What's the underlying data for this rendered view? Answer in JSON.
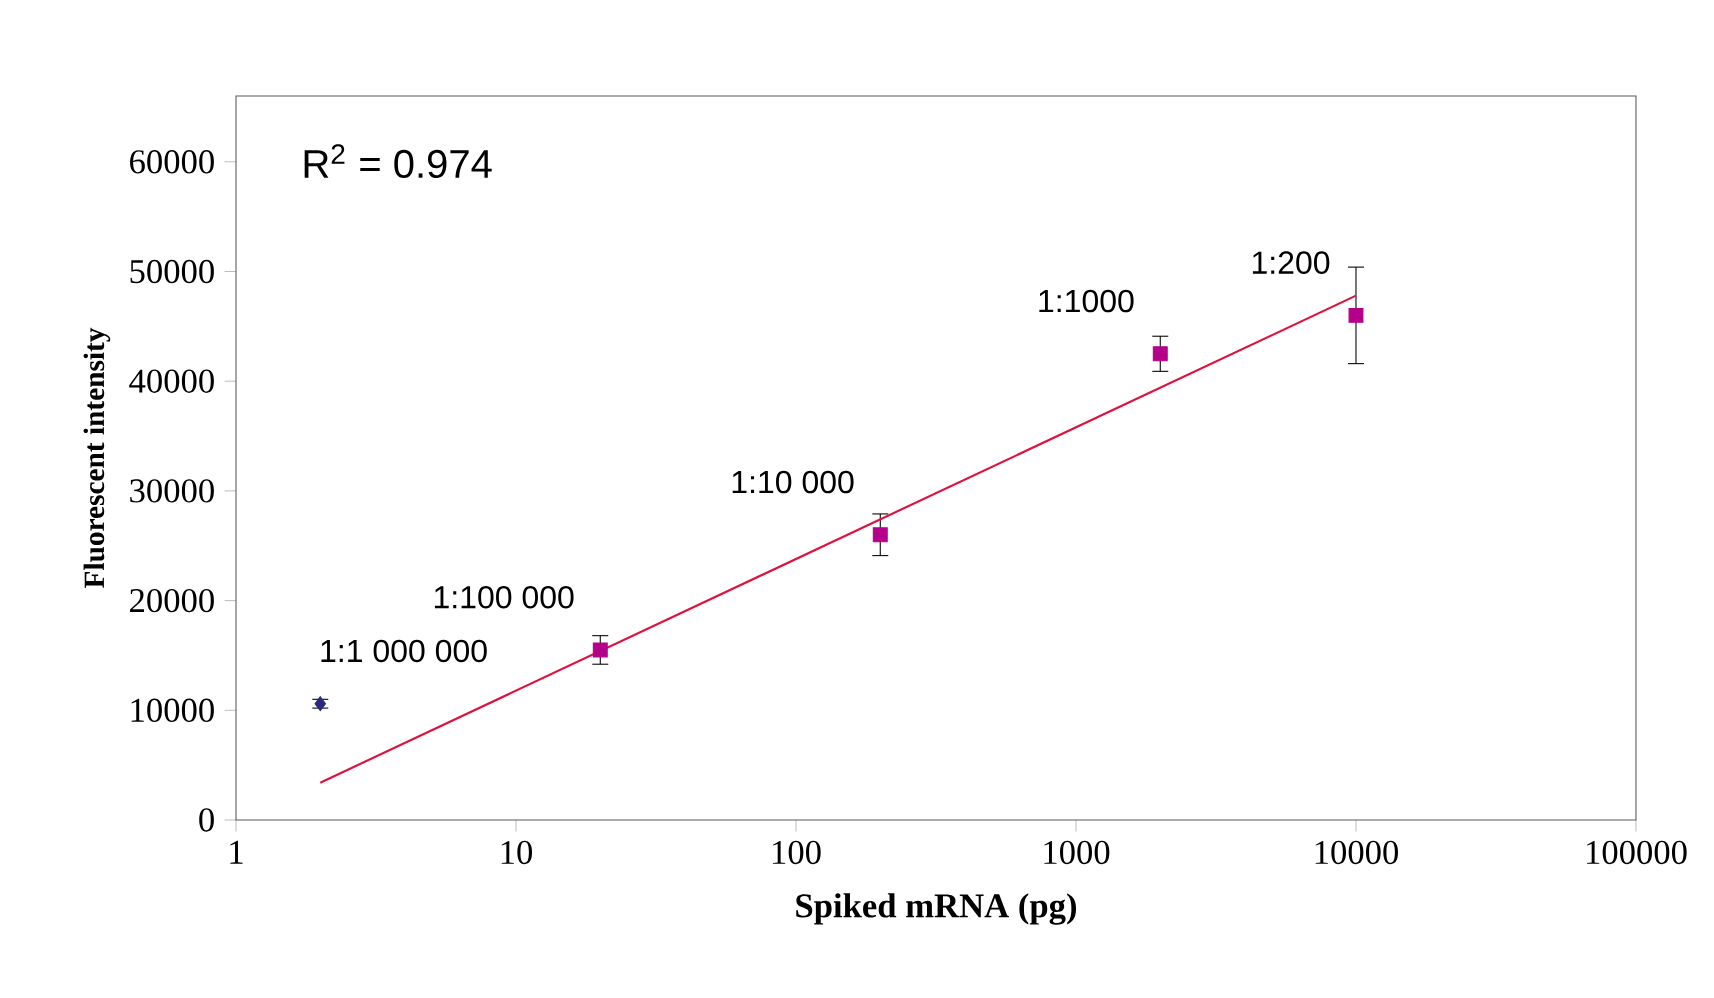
{
  "chart_data": {
    "type": "scatter",
    "xlabel": "Spiked mRNA (pg)",
    "ylabel": "Fluorescent intensity",
    "log": "x",
    "xlim": [
      1,
      100000
    ],
    "xticks": [
      1,
      10,
      100,
      1000,
      10000,
      100000
    ],
    "ylim": [
      0,
      66000
    ],
    "yticks": [
      0,
      10000,
      20000,
      30000,
      40000,
      50000,
      60000
    ],
    "series": [
      {
        "color": "#2b2a7a",
        "marker": "diamond",
        "x": [
          2
        ],
        "values": [
          10600
        ],
        "errors": [
          400
        ]
      },
      {
        "color": "#b5008a",
        "marker": "square",
        "x": [
          20,
          200,
          2000,
          10000
        ],
        "values": [
          15500,
          26000,
          42500,
          46000
        ],
        "errors": [
          1300,
          1900,
          1600,
          4400
        ]
      },
      {
        "type": "line",
        "color": "#e0103c",
        "marker": "none",
        "x": [
          2,
          10000
        ],
        "values": [
          3400,
          47800
        ]
      }
    ],
    "annotations": [
      "R$^{2}$ = 0.974",
      {
        "text": "1:1 000 000",
        "x": 2,
        "y": 10600
      },
      {
        "text": "1:100 000",
        "x": 20,
        "y": 15500
      },
      {
        "text": "1:10 000",
        "x": 200,
        "y": 26000
      },
      {
        "text": "1:1000",
        "x": 2000,
        "y": 42500
      },
      {
        "text": "1:200",
        "x": 10000,
        "y": 46000
      }
    ]
  }
}
